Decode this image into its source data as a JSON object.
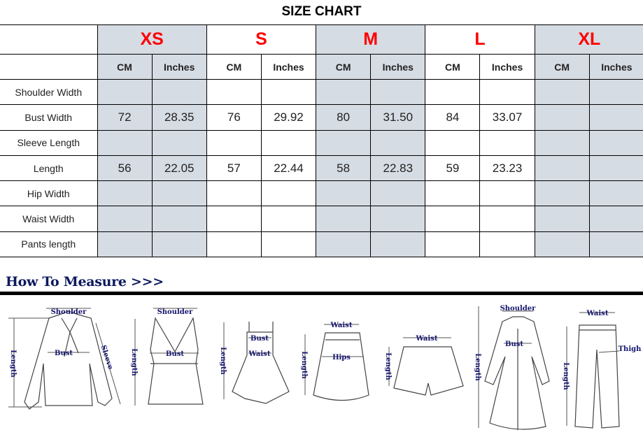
{
  "title": "SIZE CHART",
  "sizes": [
    "XS",
    "S",
    "M",
    "L",
    "XL"
  ],
  "units": [
    "CM",
    "Inches"
  ],
  "size_color": "#ff0000",
  "shade_color": "#d6dce4",
  "rows": [
    {
      "label": "Shoulder Width",
      "values": [
        "",
        "",
        "",
        "",
        "",
        "",
        "",
        "",
        "",
        ""
      ]
    },
    {
      "label": "Bust Width",
      "values": [
        "72",
        "28.35",
        "76",
        "29.92",
        "80",
        "31.50",
        "84",
        "33.07",
        "",
        ""
      ]
    },
    {
      "label": "Sleeve Length",
      "values": [
        "",
        "",
        "",
        "",
        "",
        "",
        "",
        "",
        "",
        ""
      ]
    },
    {
      "label": "Length",
      "values": [
        "56",
        "22.05",
        "57",
        "22.44",
        "58",
        "22.83",
        "59",
        "23.23",
        "",
        ""
      ]
    },
    {
      "label": "Hip Width",
      "values": [
        "",
        "",
        "",
        "",
        "",
        "",
        "",
        "",
        "",
        ""
      ]
    },
    {
      "label": "Waist Width",
      "values": [
        "",
        "",
        "",
        "",
        "",
        "",
        "",
        "",
        "",
        ""
      ]
    },
    {
      "label": "Pants length",
      "values": [
        "",
        "",
        "",
        "",
        "",
        "",
        "",
        "",
        "",
        ""
      ]
    }
  ],
  "how_to_measure": {
    "heading": "How To Measure >>>",
    "figures": [
      {
        "garment": "blouse",
        "labels": {
          "shoulder": "Shoulder",
          "bust": "Bust",
          "length": "Length",
          "sleeve": "Sleeve"
        }
      },
      {
        "garment": "tank-top",
        "labels": {
          "shoulder": "Shoulder",
          "bust": "Bust",
          "length": "Length"
        }
      },
      {
        "garment": "dress",
        "labels": {
          "bust": "Bust",
          "waist": "Waist",
          "length": "Length"
        }
      },
      {
        "garment": "skirt",
        "labels": {
          "waist": "Waist",
          "hips": "Hips",
          "length": "Length"
        }
      },
      {
        "garment": "shorts",
        "labels": {
          "waist": "Waist",
          "length": "Length"
        }
      },
      {
        "garment": "coat",
        "labels": {
          "shoulder": "Shoulder",
          "bust": "Bust",
          "length": "Length"
        }
      },
      {
        "garment": "pants",
        "labels": {
          "waist": "Waist",
          "thigh": "Thigh",
          "length": "Length"
        }
      }
    ]
  }
}
